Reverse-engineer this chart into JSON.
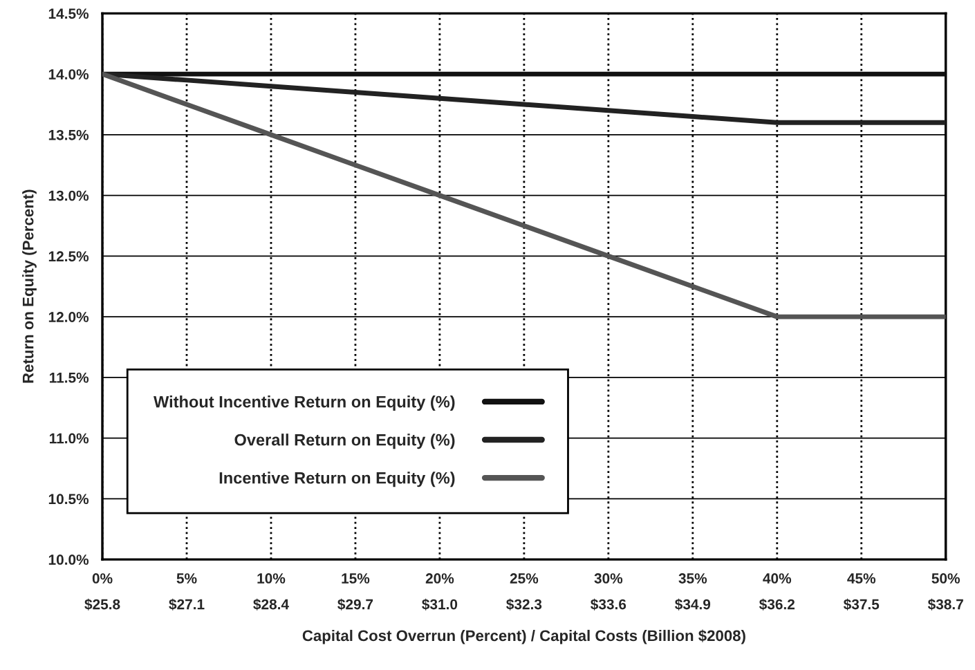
{
  "chart_data": {
    "type": "line",
    "xlabel": "Capital Cost Overrun (Percent) / Capital Costs (Billion $2008)",
    "ylabel": "Return on Equity (Percent)",
    "categories": [
      "0%\n$25.8",
      "5%\n$27.1",
      "10%\n$28.4",
      "15%\n$29.7",
      "20%\n$31.0",
      "25%\n$32.3",
      "30%\n$33.6",
      "35%\n$34.9",
      "40%\n$36.2",
      "45%\n$37.5",
      "50%\n$38.7"
    ],
    "series": [
      {
        "name": "Without Incentive Return on Equity (%)",
        "color": "#111111",
        "values": [
          14.0,
          14.0,
          14.0,
          14.0,
          14.0,
          14.0,
          14.0,
          14.0,
          14.0,
          14.0,
          14.0
        ]
      },
      {
        "name": "Overall Return on Equity (%)",
        "color": "#222222",
        "values": [
          14.0,
          13.95,
          13.9,
          13.85,
          13.8,
          13.75,
          13.7,
          13.65,
          13.6,
          13.6,
          13.6
        ]
      },
      {
        "name": "Incentive Return on Equity (%)",
        "color": "#555555",
        "values": [
          14.0,
          13.75,
          13.5,
          13.25,
          13.0,
          12.75,
          12.5,
          12.25,
          12.0,
          12.0,
          12.0
        ]
      }
    ],
    "ylim": [
      10.0,
      14.5
    ],
    "yticks": [
      {
        "value": 10.0,
        "label": "10.0%"
      },
      {
        "value": 10.5,
        "label": "10.5%"
      },
      {
        "value": 11.0,
        "label": "11.0%"
      },
      {
        "value": 11.5,
        "label": "11.5%"
      },
      {
        "value": 12.0,
        "label": "12.0%"
      },
      {
        "value": 12.5,
        "label": "12.5%"
      },
      {
        "value": 13.0,
        "label": "13.0%"
      },
      {
        "value": 13.5,
        "label": "13.5%"
      },
      {
        "value": 14.0,
        "label": "14.0%"
      },
      {
        "value": 14.5,
        "label": "14.5%"
      }
    ],
    "grid": true,
    "legend": "bottom left",
    "marker": "none",
    "line_style": "solid"
  }
}
